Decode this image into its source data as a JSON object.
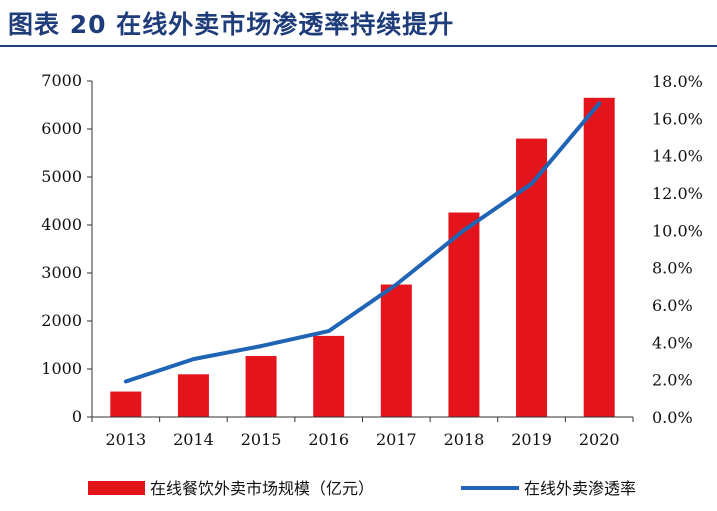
{
  "header": {
    "title": "图表 20   在线外卖市场渗透率持续提升"
  },
  "colors": {
    "title": "#1f3d7a",
    "bar": "#e3141b",
    "line": "#1f64b5"
  },
  "chart_data": {
    "type": "bar",
    "title": "",
    "categories": [
      "2013",
      "2014",
      "2015",
      "2016",
      "2017",
      "2018",
      "2019",
      "2020"
    ],
    "series": [
      {
        "name": "在线餐饮外卖市场规模（亿元）",
        "type": "bar",
        "axis": "left",
        "values": [
          530,
          890,
          1270,
          1690,
          2760,
          4260,
          5800,
          6650
        ]
      },
      {
        "name": "在线外卖渗透率",
        "type": "line",
        "axis": "right",
        "values": [
          1.9,
          3.1,
          3.8,
          4.6,
          7.1,
          10.0,
          12.5,
          16.8
        ]
      }
    ],
    "y_left": {
      "min": 0,
      "max": 7000,
      "ticks": [
        0,
        1000,
        2000,
        3000,
        4000,
        5000,
        6000,
        7000
      ]
    },
    "y_right": {
      "min": 0,
      "max": 18,
      "ticks": [
        "0.0%",
        "2.0%",
        "4.0%",
        "6.0%",
        "8.0%",
        "10.0%",
        "12.0%",
        "14.0%",
        "16.0%",
        "18.0%"
      ]
    },
    "grid": false,
    "legend_position": "bottom"
  }
}
